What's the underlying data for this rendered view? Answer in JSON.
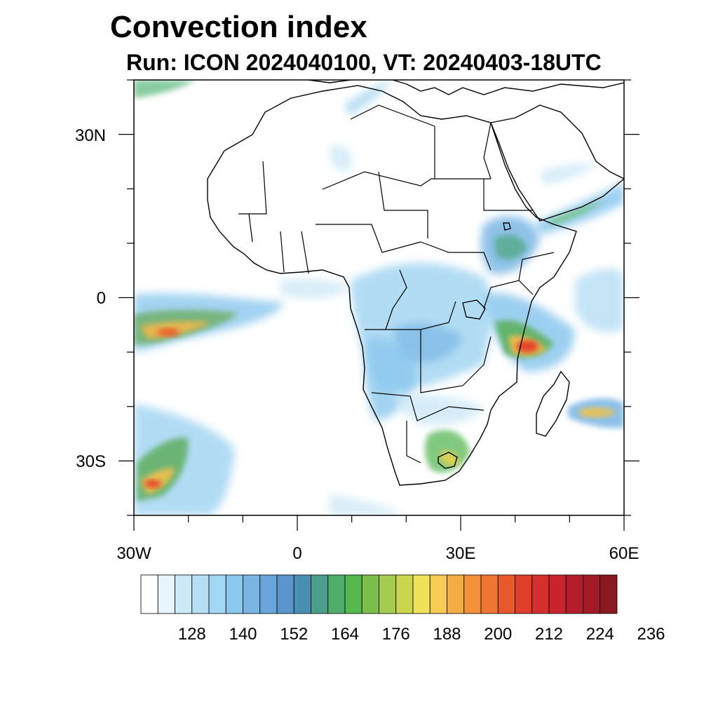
{
  "figure": {
    "title": "Convection index",
    "subtitle": "Run: ICON 2024040100,  VT: 20240403-18UTC"
  },
  "map": {
    "region": "Africa",
    "projection": "lat-lon",
    "lon_range": [
      -30,
      60
    ],
    "lat_range": [
      -40,
      40
    ],
    "x_ticks": [
      {
        "value": -30,
        "label": "30W"
      },
      {
        "value": 0,
        "label": "0"
      },
      {
        "value": 30,
        "label": "30E"
      },
      {
        "value": 60,
        "label": "60E"
      }
    ],
    "y_ticks": [
      {
        "value": 30,
        "label": "30N"
      },
      {
        "value": 0,
        "label": "0"
      },
      {
        "value": -30,
        "label": "30S"
      }
    ]
  },
  "colorbar": {
    "labels": [
      "128",
      "140",
      "152",
      "164",
      "176",
      "188",
      "200",
      "212",
      "224",
      "236"
    ],
    "colors": [
      "#ffffff",
      "#e8f4fb",
      "#cde8f7",
      "#b6def5",
      "#a2d7f4",
      "#8bc8ee",
      "#79b6e4",
      "#6aa6da",
      "#5a96cc",
      "#4a8fb4",
      "#4ca08a",
      "#4fae6a",
      "#55b84e",
      "#7cbf4b",
      "#a6cd4f",
      "#cbd54e",
      "#ede25a",
      "#f6cb52",
      "#f4ad45",
      "#f4923c",
      "#ef7532",
      "#e9582b",
      "#e13d2b",
      "#d62f2e",
      "#c8232e",
      "#b41e2a",
      "#a01b25",
      "#8a1820"
    ]
  },
  "chart_data": {
    "type": "heatmap",
    "title": "Convection index",
    "subtitle": "Run: ICON 2024040100,  VT: 20240403-18UTC",
    "x_axis": {
      "range": [
        -30,
        60
      ],
      "tick_values": [
        -30,
        0,
        30,
        60
      ],
      "tick_labels": [
        "30W",
        "0",
        "30E",
        "60E"
      ]
    },
    "y_axis": {
      "range": [
        -40,
        40
      ],
      "tick_values": [
        30,
        0,
        -30
      ],
      "tick_labels": [
        "30N",
        "0",
        "30S"
      ]
    },
    "colorbar_levels": [
      128,
      140,
      152,
      164,
      176,
      188,
      200,
      212,
      224,
      236
    ],
    "maxima": [
      {
        "lon": 42,
        "lat": -9,
        "value": 212,
        "region": "Tanzania / Mozambique coast"
      },
      {
        "lon": -27,
        "lat": -6,
        "value": 200,
        "region": "equatorial Atlantic"
      },
      {
        "lon": -27,
        "lat": -34,
        "value": 212,
        "region": "South Atlantic"
      },
      {
        "lon": 57,
        "lat": -21,
        "value": 188,
        "region": "Indian Ocean near Mauritius"
      },
      {
        "lon": 28,
        "lat": -29,
        "value": 176,
        "region": "South Africa / Lesotho"
      },
      {
        "lon": 38,
        "lat": 9,
        "value": 164,
        "region": "Ethiopian highlands"
      }
    ]
  }
}
